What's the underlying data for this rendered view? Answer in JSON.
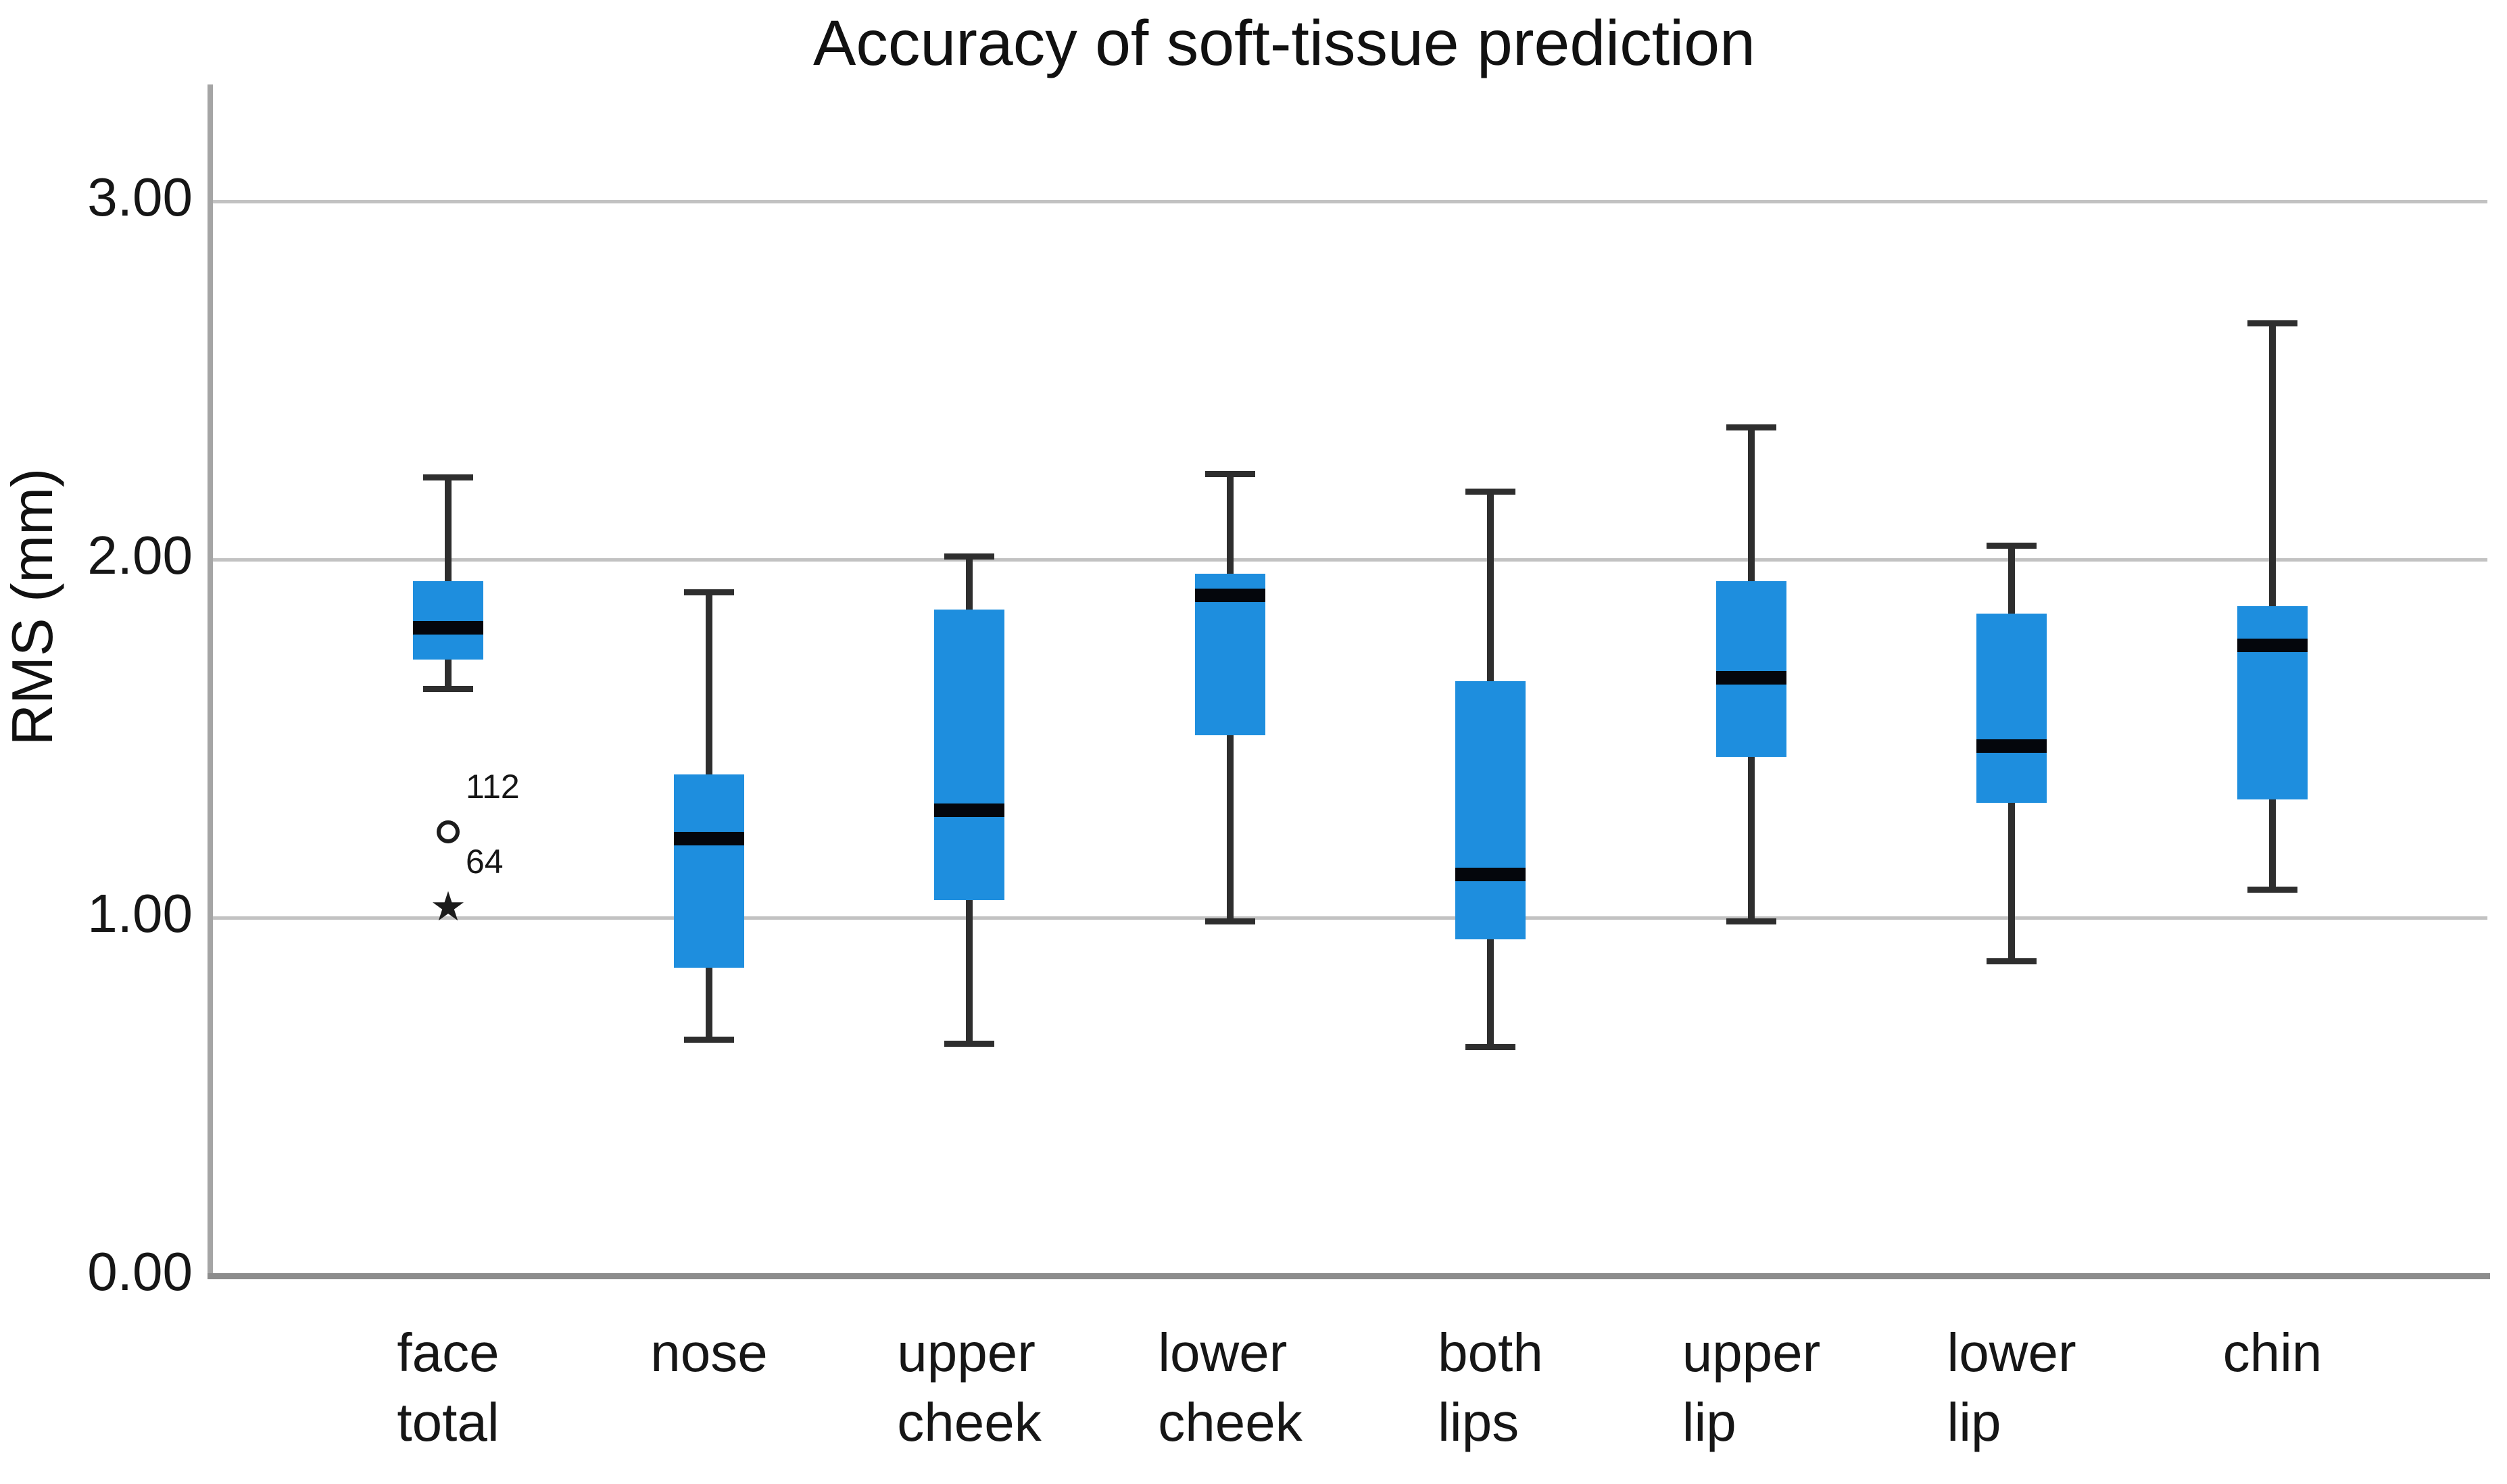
{
  "title": "Accuracy of soft-tissue prediction",
  "y_axis": {
    "label": "RMS (mm)",
    "tick_labels": [
      "0.00",
      "1.00",
      "2.00",
      "3.00"
    ]
  },
  "colors": {
    "box_fill": "#1E8EDE",
    "median": "#04060c",
    "whisker": "#2e2e2e",
    "gridline": "#c2c2c2",
    "y_axis_line": "#a5a5a5",
    "x_axis_line": "#8c8c8c",
    "text": "#161616"
  },
  "chart_data": {
    "type": "boxplot",
    "title": "Accuracy of soft-tissue prediction",
    "xlabel": "",
    "ylabel": "RMS (mm)",
    "ylim": [
      0.0,
      3.32
    ],
    "yticks": [
      {
        "value": 0.0,
        "label": "0.00"
      },
      {
        "value": 1.0,
        "label": "1.00"
      },
      {
        "value": 2.0,
        "label": "2.00"
      },
      {
        "value": 3.0,
        "label": "3.00"
      }
    ],
    "grid": "horizontal",
    "legend": "none",
    "categories": [
      "face total",
      "nose",
      "upper cheek",
      "lower cheek",
      "both lips",
      "upper lip",
      "lower lip",
      "chin"
    ],
    "series": [
      {
        "category": "face total",
        "label_lines": [
          "face",
          "total"
        ],
        "min": 1.64,
        "q1": 1.72,
        "median": 1.81,
        "q3": 1.94,
        "max": 2.23,
        "outliers": [
          {
            "value": 1.24,
            "marker": "circle",
            "label": "112"
          },
          {
            "value": 1.03,
            "marker": "star",
            "label": "64"
          }
        ]
      },
      {
        "category": "nose",
        "label_lines": [
          "nose"
        ],
        "min": 0.66,
        "q1": 0.86,
        "median": 1.22,
        "q3": 1.4,
        "max": 1.91,
        "outliers": []
      },
      {
        "category": "upper cheek",
        "label_lines": [
          "upper",
          "cheek"
        ],
        "min": 0.65,
        "q1": 1.05,
        "median": 1.3,
        "q3": 1.86,
        "max": 2.01,
        "outliers": []
      },
      {
        "category": "lower cheek",
        "label_lines": [
          "lower",
          "cheek"
        ],
        "min": 0.99,
        "q1": 1.51,
        "median": 1.9,
        "q3": 1.96,
        "max": 2.24,
        "outliers": []
      },
      {
        "category": "both lips",
        "label_lines": [
          "both",
          "lips"
        ],
        "min": 0.64,
        "q1": 0.94,
        "median": 1.12,
        "q3": 1.66,
        "max": 2.19,
        "outliers": []
      },
      {
        "category": "upper lip",
        "label_lines": [
          "upper",
          "lip"
        ],
        "min": 0.99,
        "q1": 1.45,
        "median": 1.67,
        "q3": 1.94,
        "max": 2.37,
        "outliers": []
      },
      {
        "category": "lower lip",
        "label_lines": [
          "lower",
          "lip"
        ],
        "min": 0.88,
        "q1": 1.32,
        "median": 1.48,
        "q3": 1.85,
        "max": 2.04,
        "outliers": []
      },
      {
        "category": "chin",
        "label_lines": [
          "chin"
        ],
        "min": 1.08,
        "q1": 1.33,
        "median": 1.76,
        "q3": 1.87,
        "max": 2.66,
        "outliers": []
      }
    ]
  }
}
